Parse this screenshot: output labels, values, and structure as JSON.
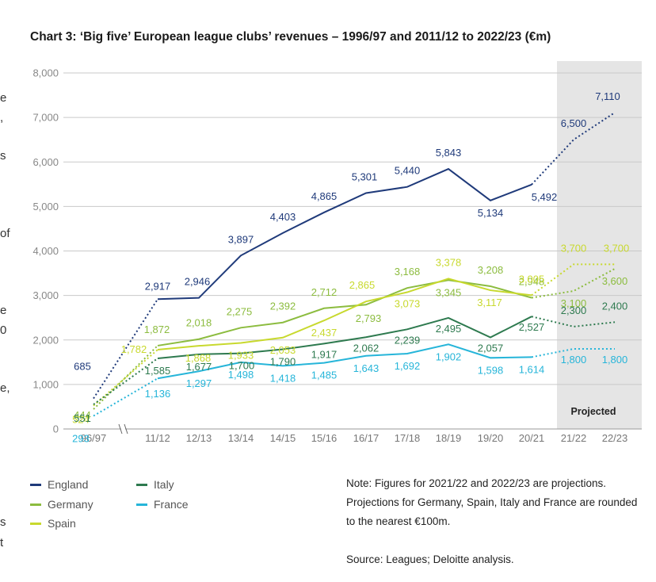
{
  "edge_fragments": [
    "e",
    ",",
    "s",
    "of",
    "e",
    "0",
    "e,",
    "s",
    "t"
  ],
  "legend": [
    {
      "label": "England",
      "color": "#1f3a7a"
    },
    {
      "label": "Germany",
      "color": "#8cbc3f"
    },
    {
      "label": "Spain",
      "color": "#c8d92e"
    },
    {
      "label": "Italy",
      "color": "#2e7a4f"
    },
    {
      "label": "France",
      "color": "#26b5d9"
    }
  ],
  "note": "Note: Figures for 2021/22 and 2022/23 are projections. Projections for Germany, Spain, Italy and France are rounded to the nearest €100m.",
  "source": "Source: Leagues; Deloitte analysis.",
  "chart_data": {
    "type": "line",
    "title": "Chart 3: ‘Big five’ European league clubs’ revenues – 1996/97 and 2011/12 to 2022/23 (€m)",
    "categories": [
      "96/97",
      "11/12",
      "12/13",
      "13/14",
      "14/15",
      "15/16",
      "16/17",
      "17/18",
      "18/19",
      "19/20",
      "20/21",
      "21/22",
      "22/23"
    ],
    "y_ticks": [
      "0",
      "1,000",
      "2,000",
      "3,000",
      "4,000",
      "5,000",
      "6,000",
      "7,000",
      "8,000"
    ],
    "ylim": [
      0,
      8000
    ],
    "grid": true,
    "axis_break_after": "96/97",
    "projected_label": "Projected",
    "projected_categories": [
      "21/22",
      "22/23"
    ],
    "series": [
      {
        "name": "England",
        "color": "#1f3a7a",
        "values": [
          685,
          2917,
          2946,
          3897,
          4403,
          4865,
          5301,
          5440,
          5843,
          5134,
          5492,
          6500,
          7110
        ],
        "labels": [
          "685",
          "2,917",
          "2,946",
          "3,897",
          "4,403",
          "4,865",
          "5,301",
          "5,440",
          "5,843",
          "5,134",
          "5,492",
          "6,500",
          "7,110"
        ]
      },
      {
        "name": "Germany",
        "color": "#8cbc3f",
        "values": [
          444,
          1872,
          2018,
          2275,
          2392,
          2712,
          2793,
          3168,
          3345,
          3208,
          2948,
          3100,
          3600
        ],
        "labels": [
          "444",
          "1,872",
          "2,018",
          "2,275",
          "2,392",
          "2,712",
          "2,793",
          "3,168",
          "3,345",
          "3,208",
          "2,948",
          "3,100",
          "3,600"
        ]
      },
      {
        "name": "Spain",
        "color": "#c8d92e",
        "values": [
          524,
          1782,
          1868,
          1933,
          2053,
          2437,
          2865,
          3073,
          3378,
          3117,
          3005,
          3700,
          3700
        ],
        "labels": [
          "524",
          "1,782",
          "1,868",
          "1,933",
          "2,053",
          "2,437",
          "2,865",
          "3,073",
          "3,378",
          "3,117",
          "3,005",
          "3,700",
          "3,700"
        ]
      },
      {
        "name": "Italy",
        "color": "#2e7a4f",
        "values": [
          551,
          1585,
          1677,
          1700,
          1790,
          1917,
          2062,
          2239,
          2495,
          2057,
          2527,
          2300,
          2400
        ],
        "labels": [
          "551",
          "1,585",
          "1,677",
          "1,700",
          "1,790",
          "1,917",
          "2,062",
          "2,239",
          "2,495",
          "2,057",
          "2,527",
          "2,300",
          "2,400"
        ]
      },
      {
        "name": "France",
        "color": "#26b5d9",
        "values": [
          293,
          1136,
          1297,
          1498,
          1418,
          1485,
          1643,
          1692,
          1902,
          1598,
          1614,
          1800,
          1800
        ],
        "labels": [
          "293",
          "1,136",
          "1,297",
          "1,498",
          "1,418",
          "1,485",
          "1,643",
          "1,692",
          "1,902",
          "1,598",
          "1,614",
          "1,800",
          "1,800"
        ]
      }
    ]
  }
}
